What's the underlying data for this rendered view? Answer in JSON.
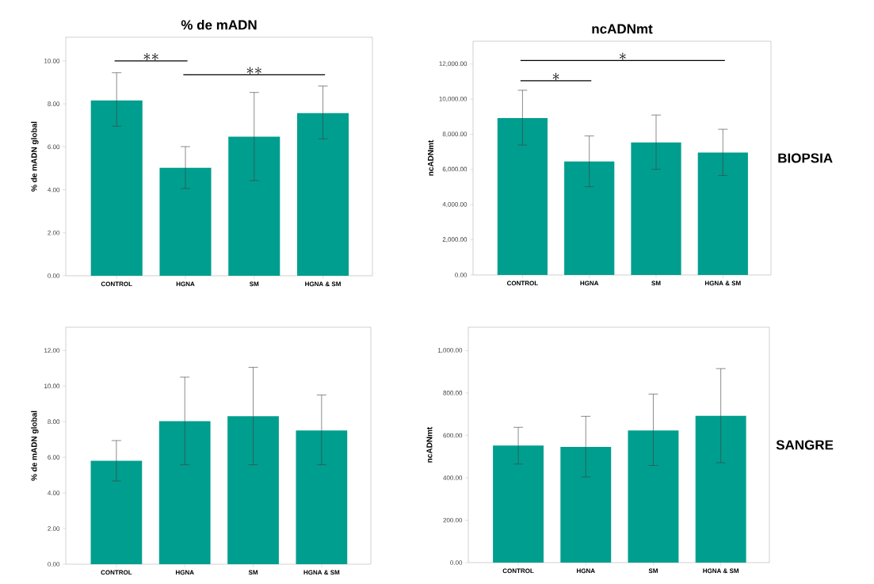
{
  "chart_data": [
    {
      "type": "bar",
      "title": "% de mADN",
      "ylabel": "% de mADN global",
      "categories": [
        "CONTROL",
        "HGNA",
        "SM",
        "HGNA & SM"
      ],
      "color": "#009e8e",
      "values": [
        8.16,
        5.02,
        6.47,
        7.57
      ],
      "errors": [
        [
          6.96,
          9.45
        ],
        [
          4.06,
          6.01
        ],
        [
          4.43,
          8.53
        ],
        [
          6.37,
          8.83
        ]
      ],
      "ylim": [
        0,
        11.1
      ],
      "yticks": [
        {
          "value": 0,
          "label": "0.00"
        },
        {
          "value": 2,
          "label": "2.00"
        },
        {
          "value": 4,
          "label": "4.00"
        },
        {
          "value": 6,
          "label": "6.00"
        },
        {
          "value": 8,
          "label": "8.00"
        },
        {
          "value": 10,
          "label": "10.00"
        }
      ],
      "annotations": [
        "**",
        "**"
      ]
    },
    {
      "type": "bar",
      "title": "ncADNmt",
      "ylabel": "ncADNmt",
      "categories": [
        "CONTROL",
        "HGNA",
        "SM",
        "HGNA & SM"
      ],
      "color": "#009e8e",
      "values": [
        8930,
        6460,
        7540,
        6970
      ],
      "errors": [
        [
          7390,
          10510
        ],
        [
          5020,
          7910
        ],
        [
          6010,
          9100
        ],
        [
          5660,
          8290
        ]
      ],
      "ylim": [
        0,
        13300
      ],
      "yticks": [
        {
          "value": 0,
          "label": "0.00"
        },
        {
          "value": 2000,
          "label": "2,000.00"
        },
        {
          "value": 4000,
          "label": "4,000.00"
        },
        {
          "value": 6000,
          "label": "6,000.00"
        },
        {
          "value": 8000,
          "label": "8,000.00"
        },
        {
          "value": 10000,
          "label": "10,000.00"
        },
        {
          "value": 12000,
          "label": "12,000.00"
        }
      ],
      "annotations": [
        "*",
        "*",
        "BIOPSIA"
      ]
    },
    {
      "type": "bar",
      "ylabel": "% de mADN global",
      "categories": [
        "CONTROL",
        "HGNA",
        "SM",
        "HGNA & SM"
      ],
      "color": "#009e8e",
      "values": [
        5.8,
        8.03,
        8.31,
        7.51
      ],
      "errors": [
        [
          4.67,
          6.94
        ],
        [
          5.58,
          10.5
        ],
        [
          5.58,
          11.05
        ],
        [
          5.58,
          9.5
        ]
      ],
      "ylim": [
        0,
        13.3
      ],
      "yticks": [
        {
          "value": 0,
          "label": "0.00"
        },
        {
          "value": 2,
          "label": "2.00"
        },
        {
          "value": 4,
          "label": "4.00"
        },
        {
          "value": 6,
          "label": "6.00"
        },
        {
          "value": 8,
          "label": "8.00"
        },
        {
          "value": 10,
          "label": "10.00"
        },
        {
          "value": 12,
          "label": "12.00"
        }
      ]
    },
    {
      "type": "bar",
      "ylabel": "ncADNmt",
      "categories": [
        "CONTROL",
        "HGNA",
        "SM",
        "HGNA & SM"
      ],
      "color": "#009e8e",
      "values": [
        552,
        546,
        623,
        692
      ],
      "errors": [
        [
          465,
          638
        ],
        [
          404,
          690
        ],
        [
          458,
          795
        ],
        [
          471,
          915
        ]
      ],
      "ylim": [
        0,
        1110
      ],
      "yticks": [
        {
          "value": 0,
          "label": "0.00"
        },
        {
          "value": 200,
          "label": "200.00"
        },
        {
          "value": 400,
          "label": "400.00"
        },
        {
          "value": 600,
          "label": "600.00"
        },
        {
          "value": 800,
          "label": "800.00"
        },
        {
          "value": 1000,
          "label": "1,000.00"
        }
      ],
      "annotations": [
        "SANGRE"
      ]
    }
  ]
}
